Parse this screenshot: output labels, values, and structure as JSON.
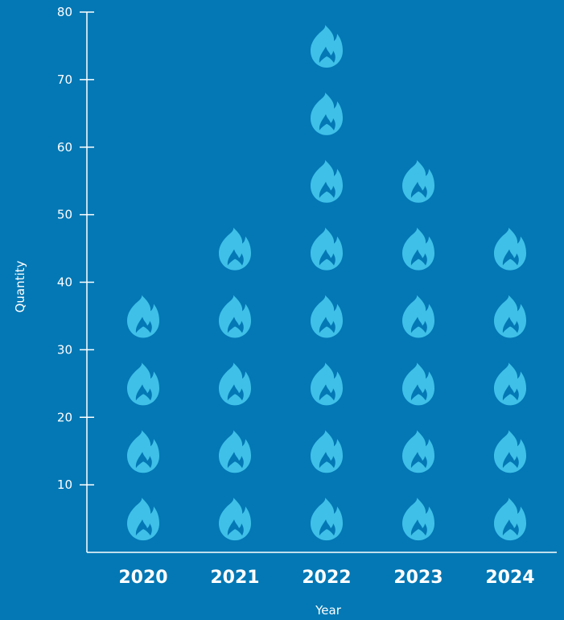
{
  "chart_data": {
    "type": "pictograph",
    "icon": "flame-icon",
    "unit_per_icon": 10,
    "xlabel": "Year",
    "ylabel": "Quantity",
    "ylim": [
      0,
      80
    ],
    "yticks": [
      10,
      20,
      30,
      40,
      50,
      60,
      70,
      80
    ],
    "categories": [
      "2020",
      "2021",
      "2022",
      "2023",
      "2024"
    ],
    "values": [
      40,
      50,
      80,
      60,
      50
    ],
    "grid": false,
    "legend": "none"
  },
  "colors": {
    "background": "#0378B5",
    "icon": "#3FC0E8",
    "axis": "#FFFFFF",
    "text": "#FFFFFF"
  }
}
